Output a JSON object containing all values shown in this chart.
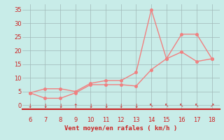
{
  "x": [
    6,
    7,
    8,
    9,
    10,
    11,
    12,
    13,
    14,
    15,
    16,
    17,
    18
  ],
  "y_moyen": [
    4.5,
    2.5,
    2.5,
    4.5,
    7.5,
    7.5,
    7.5,
    7.0,
    13.0,
    17.0,
    19.5,
    16.0,
    17.0
  ],
  "y_rafales": [
    4.5,
    6.0,
    6.0,
    5.0,
    8.0,
    9.0,
    9.0,
    12.0,
    35.0,
    17.0,
    26.0,
    26.0,
    17.0
  ],
  "line_color": "#f08080",
  "bg_color": "#c8ece8",
  "grid_color": "#a0b8b8",
  "axis_color": "#cc2222",
  "xlabel": "Vent moyen/en rafales ( km/h )",
  "xlim": [
    5.5,
    18.5
  ],
  "ylim": [
    -1.5,
    37
  ],
  "xticks": [
    6,
    7,
    8,
    9,
    10,
    11,
    12,
    13,
    14,
    15,
    16,
    17,
    18
  ],
  "yticks": [
    0,
    5,
    10,
    15,
    20,
    25,
    30,
    35
  ],
  "xlabel_color": "#cc2222",
  "tick_color": "#cc2222",
  "spine_color": "#cc2222",
  "line_width": 1.0,
  "marker_size": 2.5
}
